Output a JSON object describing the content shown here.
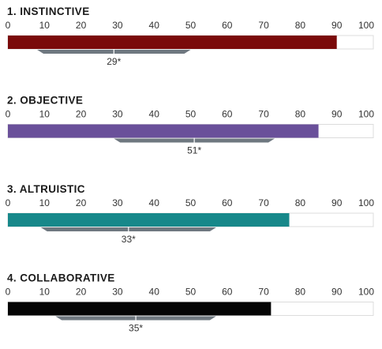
{
  "chart_data": {
    "type": "bar",
    "orientation": "horizontal",
    "xlim": [
      0,
      100
    ],
    "ticks": [
      "0",
      "10",
      "20",
      "30",
      "40",
      "50",
      "60",
      "70",
      "80",
      "90",
      "100"
    ],
    "grid": false,
    "panels": [
      {
        "title": "1. INSTINCTIVE",
        "value": 90,
        "color": "#7a0a0a",
        "range": [
          8,
          50
        ],
        "marker": 29,
        "annotation": "29*"
      },
      {
        "title": "2. OBJECTIVE",
        "value": 85,
        "color": "#6a509a",
        "range": [
          29,
          73
        ],
        "marker": 51,
        "annotation": "51*"
      },
      {
        "title": "3. ALTRUISTIC",
        "value": 77,
        "color": "#17888a",
        "range": [
          9,
          57
        ],
        "marker": 33,
        "annotation": "33*"
      },
      {
        "title": "4. COLLABORATIVE",
        "value": 72,
        "color": "#050505",
        "range": [
          13,
          57
        ],
        "marker": 35,
        "annotation": "35*"
      }
    ],
    "range_color": "#6f7880"
  }
}
